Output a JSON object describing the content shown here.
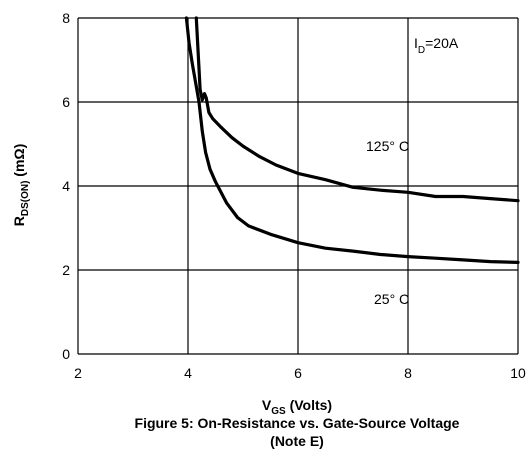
{
  "chart_data": {
    "type": "line",
    "title": "Figure 5: On-Resistance vs. Gate-Source Voltage",
    "subtitle": "(Note E)",
    "xlabel": {
      "main": "V",
      "sub": "GS",
      "suffix": " (Volts)"
    },
    "ylabel": {
      "main": "R",
      "sub": "DS(ON)",
      "suffix": " (mΩ)"
    },
    "xlim": [
      2,
      10
    ],
    "ylim": [
      0,
      8
    ],
    "x_ticks": [
      "2",
      "4",
      "6",
      "8",
      "10"
    ],
    "y_ticks": [
      "0",
      "2",
      "4",
      "6",
      "8"
    ],
    "grid": true,
    "annotations": {
      "condition": {
        "main": "I",
        "sub": "D",
        "suffix": "=20A"
      },
      "hot_label": "125° C",
      "cold_label": "25° C"
    },
    "series": [
      {
        "name": "125° C",
        "x": [
          4.15,
          4.2,
          4.22,
          4.26,
          4.3,
          4.33,
          4.38,
          4.45,
          4.6,
          4.8,
          5.0,
          5.3,
          5.6,
          6.0,
          6.5,
          7.0,
          7.5,
          8.0,
          8.5,
          9.0,
          9.5,
          10.0
        ],
        "y": [
          8.0,
          6.8,
          6.3,
          6.05,
          6.2,
          6.1,
          5.75,
          5.6,
          5.4,
          5.15,
          4.95,
          4.7,
          4.5,
          4.3,
          4.15,
          3.97,
          3.9,
          3.85,
          3.75,
          3.75,
          3.7,
          3.65
        ]
      },
      {
        "name": "25° C",
        "x": [
          3.97,
          4.02,
          4.08,
          4.12,
          4.16,
          4.2,
          4.26,
          4.32,
          4.4,
          4.5,
          4.7,
          4.9,
          5.1,
          5.5,
          6.0,
          6.5,
          7.0,
          7.5,
          8.0,
          8.5,
          9.0,
          9.5,
          10.0
        ],
        "y": [
          8.0,
          7.4,
          6.9,
          6.6,
          6.3,
          6.0,
          5.3,
          4.8,
          4.4,
          4.1,
          3.6,
          3.25,
          3.05,
          2.85,
          2.65,
          2.52,
          2.45,
          2.37,
          2.32,
          2.28,
          2.24,
          2.2,
          2.18
        ]
      }
    ]
  }
}
